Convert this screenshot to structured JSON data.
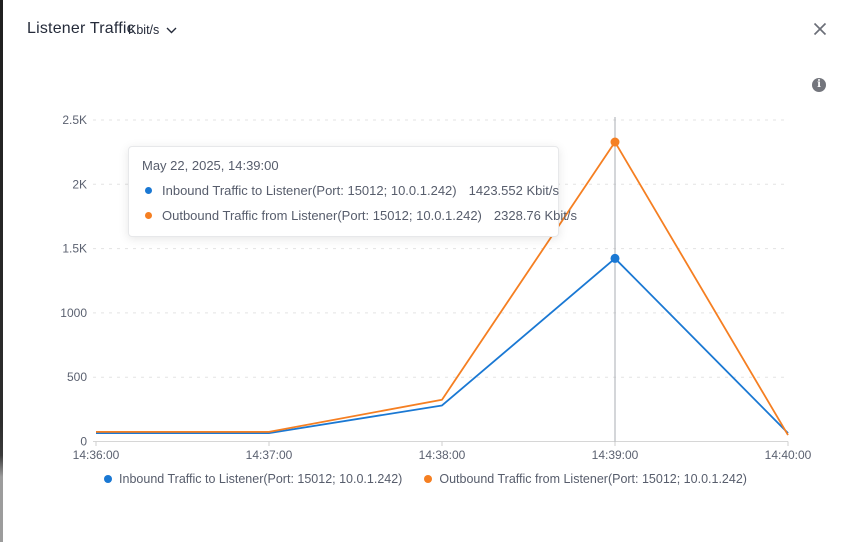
{
  "panel": {
    "title": "Listener Traffic",
    "unit": "Kbit/s"
  },
  "icons": {
    "info": "i",
    "close": "close-x",
    "chevron": "chevron-down"
  },
  "tooltip": {
    "timestamp": "May 22, 2025, 14:39:00",
    "rows": [
      {
        "name": "Inbound Traffic to Listener(Port: 15012; 10.0.1.242)",
        "value": "1423.552 Kbit/s",
        "color": "#1a78d3"
      },
      {
        "name": "Outbound Traffic from Listener(Port: 15012; 10.0.1.242)",
        "value": "2328.76 Kbit/s",
        "color": "#f57f22"
      }
    ]
  },
  "chart_data": {
    "type": "line",
    "title": "Listener Traffic",
    "unit": "Kbit/s",
    "x": [
      "14:36:00",
      "14:37:00",
      "14:38:00",
      "14:39:00",
      "14:40:00"
    ],
    "series": [
      {
        "name": "Inbound Traffic to Listener(Port: 15012; 10.0.1.242)",
        "color": "#1a78d3",
        "values": [
          65,
          65,
          280,
          1423.552,
          65
        ]
      },
      {
        "name": "Outbound Traffic from Listener(Port: 15012; 10.0.1.242)",
        "color": "#f57f22",
        "values": [
          75,
          75,
          325,
          2328.76,
          50
        ]
      }
    ],
    "ylim": [
      0,
      2500
    ],
    "y_ticks": [
      {
        "value": 0,
        "label": "0"
      },
      {
        "value": 500,
        "label": "500"
      },
      {
        "value": 1000,
        "label": "1000"
      },
      {
        "value": 1500,
        "label": "1.5K"
      },
      {
        "value": 2000,
        "label": "2K"
      },
      {
        "value": 2500,
        "label": "2.5K"
      }
    ],
    "grid": "horizontal-dashed",
    "legend_position": "bottom",
    "hover_index": 3,
    "hover_label": "14:39:00"
  }
}
